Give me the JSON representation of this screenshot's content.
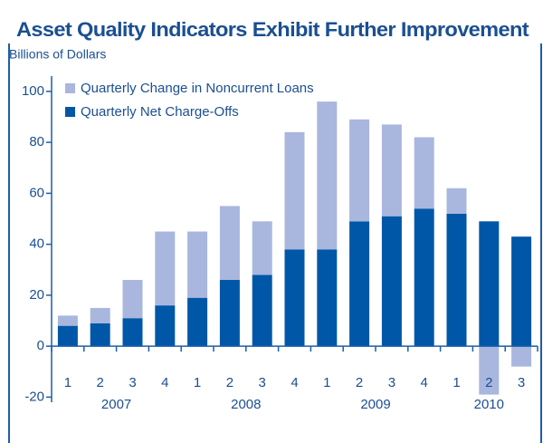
{
  "chart_data": {
    "type": "stacked_bar",
    "title": "Asset Quality Indicators Exhibit Further Improvement",
    "subtitle": "Billions of Dollars",
    "categories": [
      "1",
      "2",
      "3",
      "4",
      "1",
      "2",
      "3",
      "4",
      "1",
      "2",
      "3",
      "4",
      "1",
      "2",
      "3"
    ],
    "year_groups": [
      {
        "label": "2007",
        "count": 4
      },
      {
        "label": "2008",
        "count": 4
      },
      {
        "label": "2009",
        "count": 4
      },
      {
        "label": "2010",
        "count": 3
      }
    ],
    "series": [
      {
        "name": "Quarterly Net Charge-Offs",
        "color": "#0057a8",
        "values": [
          8,
          9,
          11,
          16,
          19,
          26,
          28,
          38,
          38,
          49,
          51,
          54,
          52,
          49,
          43
        ]
      },
      {
        "name": "Quarterly Change in Noncurrent Loans",
        "color": "#a9b7de",
        "values": [
          4,
          6,
          15,
          29,
          26,
          29,
          21,
          46,
          58,
          40,
          36,
          28,
          10,
          -19,
          -8
        ]
      }
    ],
    "ylim": [
      -22,
      106
    ],
    "yticks": [
      -20,
      0,
      20,
      40,
      60,
      80,
      100
    ]
  }
}
